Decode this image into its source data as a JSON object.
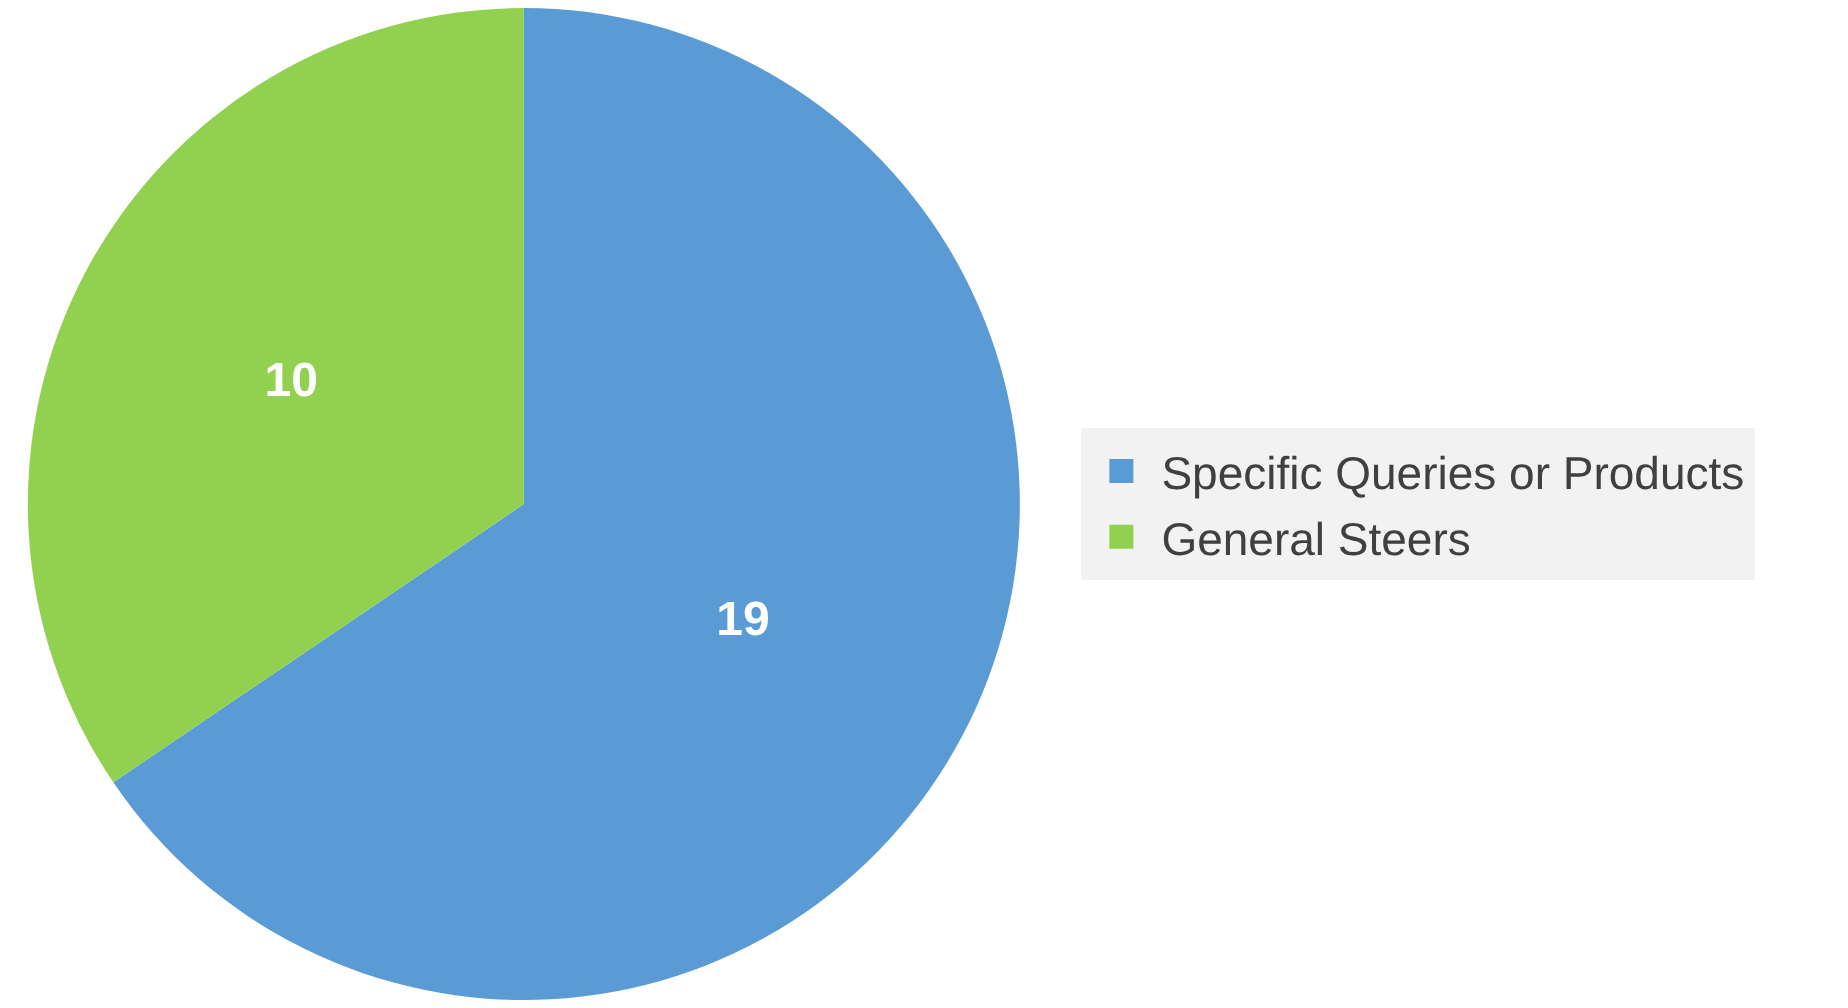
{
  "chart_data": {
    "type": "pie",
    "categories": [
      "Specific Queries or Products",
      "General Steers"
    ],
    "values": [
      19,
      10
    ],
    "colors": [
      "#5b9bd5",
      "#92d050"
    ],
    "data_labels": true,
    "legend": "right"
  }
}
